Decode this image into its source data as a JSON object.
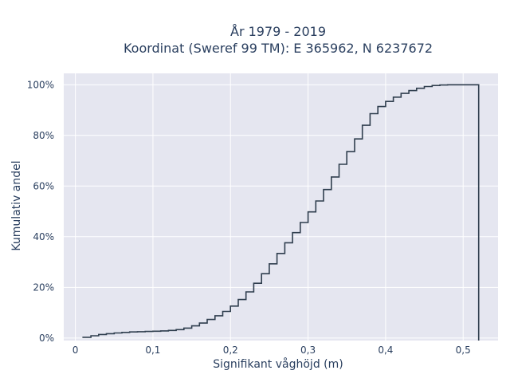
{
  "chart_data": {
    "type": "line",
    "subtype": "ecdf-step",
    "title_line1": "År 1979 - 2019",
    "title_line2": "Koordinat (Sweref 99 TM): E 365962, N 6237672",
    "xlabel": "Signifikant våghöjd (m)",
    "ylabel": "Kumulativ andel",
    "xlim": [
      -0.015,
      0.545
    ],
    "ylim": [
      -1,
      104.5
    ],
    "x_ticks": [
      0,
      0.1,
      0.2,
      0.3,
      0.4,
      0.5
    ],
    "x_tick_labels": [
      "0",
      "0,1",
      "0,2",
      "0,3",
      "0,4",
      "0,5"
    ],
    "y_ticks": [
      0,
      20,
      40,
      60,
      80,
      100
    ],
    "y_tick_labels": [
      "0%",
      "20%",
      "40%",
      "60%",
      "80%",
      "100%"
    ],
    "grid": true,
    "colors": {
      "plot_bg": "#e5e6f0",
      "grid": "#ffffff",
      "line": "#2f3e4e"
    },
    "series": [
      {
        "x": [
          0.01,
          0.02,
          0.03,
          0.04,
          0.05,
          0.06,
          0.07,
          0.08,
          0.09,
          0.1,
          0.11,
          0.12,
          0.13,
          0.14,
          0.15,
          0.16,
          0.17,
          0.18,
          0.19,
          0.2,
          0.21,
          0.22,
          0.23,
          0.24,
          0.25,
          0.26,
          0.27,
          0.28,
          0.29,
          0.3,
          0.31,
          0.32,
          0.33,
          0.34,
          0.35,
          0.36,
          0.37,
          0.38,
          0.39,
          0.4,
          0.41,
          0.42,
          0.43,
          0.44,
          0.45,
          0.46,
          0.47,
          0.48,
          0.49,
          0.5,
          0.51,
          0.52
        ],
        "y": [
          0.3,
          0.9,
          1.4,
          1.7,
          2.0,
          2.2,
          2.4,
          2.5,
          2.6,
          2.7,
          2.8,
          3.0,
          3.3,
          3.9,
          4.8,
          5.9,
          7.3,
          8.8,
          10.5,
          12.6,
          15.2,
          18.2,
          21.6,
          25.4,
          29.3,
          33.4,
          37.6,
          41.6,
          45.6,
          49.8,
          54.1,
          58.6,
          63.6,
          68.6,
          73.6,
          78.6,
          84.0,
          88.6,
          91.4,
          93.4,
          95.1,
          96.6,
          97.7,
          98.6,
          99.3,
          99.7,
          99.9,
          100,
          100,
          100,
          100,
          100
        ]
      }
    ]
  }
}
